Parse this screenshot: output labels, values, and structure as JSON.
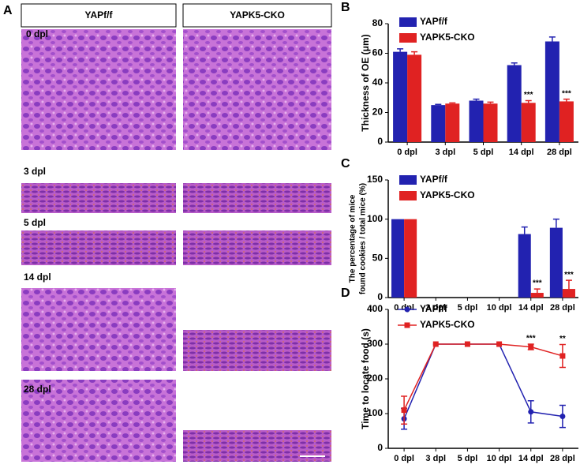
{
  "panel_a": {
    "label": "A",
    "columns": [
      "YAPf/f",
      "YAPK5-CKO"
    ],
    "rows": [
      "0 dpl",
      "3 dpl",
      "5 dpl",
      "14 dpl",
      "28 dpl"
    ]
  },
  "chart_data": [
    {
      "type": "bar",
      "panel": "B",
      "ylabel": [
        "Thickness  of OE (μm)"
      ],
      "categories": [
        "0 dpl",
        "3 dpl",
        "5 dpl",
        "14 dpl",
        "28 dpl"
      ],
      "series": [
        {
          "name": "YAPf/f",
          "color": "#2222b0",
          "values": [
            61,
            25,
            28,
            52,
            68
          ],
          "errors": [
            2,
            0.5,
            1,
            1.5,
            3
          ]
        },
        {
          "name": "YAPK5-CKO",
          "color": "#e02222",
          "values": [
            59,
            26,
            26,
            26.5,
            27.5
          ],
          "errors": [
            2,
            0.5,
            1,
            1.5,
            1.5
          ]
        }
      ],
      "annotations": [
        {
          "category": "14 dpl",
          "text": "***"
        },
        {
          "category": "28 dpl",
          "text": "***"
        }
      ],
      "ylim": [
        0,
        80
      ],
      "yticks": [
        0,
        20,
        40,
        60,
        80
      ]
    },
    {
      "type": "bar",
      "panel": "C",
      "ylabel": [
        "The percentage of mice",
        "found cookies / total mice (%)"
      ],
      "categories": [
        "0 dpl",
        "3 dpl",
        "5 dpl",
        "10 dpl",
        "14 dpl",
        "28 dpl"
      ],
      "series": [
        {
          "name": "YAPf/f",
          "color": "#2222b0",
          "values": [
            100,
            null,
            null,
            null,
            81,
            89
          ],
          "errors": [
            0,
            null,
            null,
            null,
            9,
            11
          ]
        },
        {
          "name": "YAPK5-CKO",
          "color": "#e02222",
          "values": [
            100,
            null,
            null,
            null,
            6,
            11
          ],
          "errors": [
            0,
            null,
            null,
            null,
            5,
            11
          ]
        }
      ],
      "annotations": [
        {
          "category": "14 dpl",
          "text": "***"
        },
        {
          "category": "28 dpl",
          "text": "***"
        }
      ],
      "ylim": [
        0,
        150
      ],
      "yticks": [
        0,
        50,
        100,
        150
      ]
    },
    {
      "type": "line",
      "panel": "D",
      "ylabel": [
        "Time to locate food (s)"
      ],
      "categories": [
        "0 dpl",
        "3 dpl",
        "5 dpl",
        "10 dpl",
        "14 dpl",
        "28 dpl"
      ],
      "series": [
        {
          "name": "YAPf/f",
          "color": "#2222b0",
          "marker": "circle",
          "values": [
            85,
            300,
            300,
            300,
            105,
            92
          ],
          "errors": [
            30,
            0,
            0,
            0,
            32,
            32
          ]
        },
        {
          "name": "YAPK5-CKO",
          "color": "#e02222",
          "marker": "square",
          "values": [
            110,
            300,
            300,
            300,
            292,
            266
          ],
          "errors": [
            40,
            0,
            0,
            0,
            8,
            33
          ]
        }
      ],
      "annotations": [
        {
          "category": "14 dpl",
          "text": "***"
        },
        {
          "category": "28 dpl",
          "text": "**"
        }
      ],
      "ylim": [
        0,
        400
      ],
      "yticks": [
        0,
        100,
        200,
        300,
        400
      ]
    }
  ]
}
